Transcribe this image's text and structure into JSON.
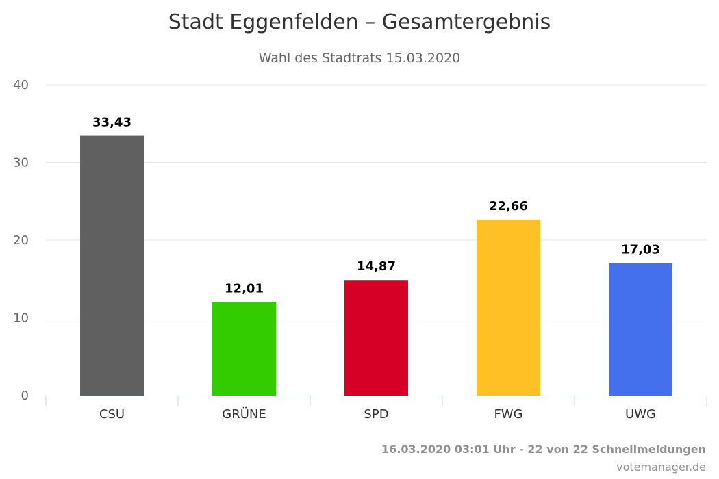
{
  "chart_data": {
    "type": "bar",
    "title": "Stadt Eggenfelden – Gesamtergebnis",
    "subtitle": "Wahl des Stadtrats 15.03.2020",
    "categories": [
      "CSU",
      "GRÜNE",
      "SPD",
      "FWG",
      "UWG"
    ],
    "values": [
      33.43,
      12.01,
      14.87,
      22.66,
      17.03
    ],
    "data_labels": [
      "33,43",
      "12,01",
      "14,87",
      "22,66",
      "17,03"
    ],
    "colors": [
      "#606060",
      "#33cc00",
      "#d60027",
      "#ffc025",
      "#4570ed"
    ],
    "ylim": [
      0,
      40
    ],
    "yticks": [
      0,
      10,
      20,
      30,
      40
    ],
    "grid": true,
    "legend": "none"
  },
  "footer": {
    "status": "16.03.2020 03:01 Uhr - 22 von 22 Schnellmeldungen",
    "source": "votemanager.de"
  }
}
